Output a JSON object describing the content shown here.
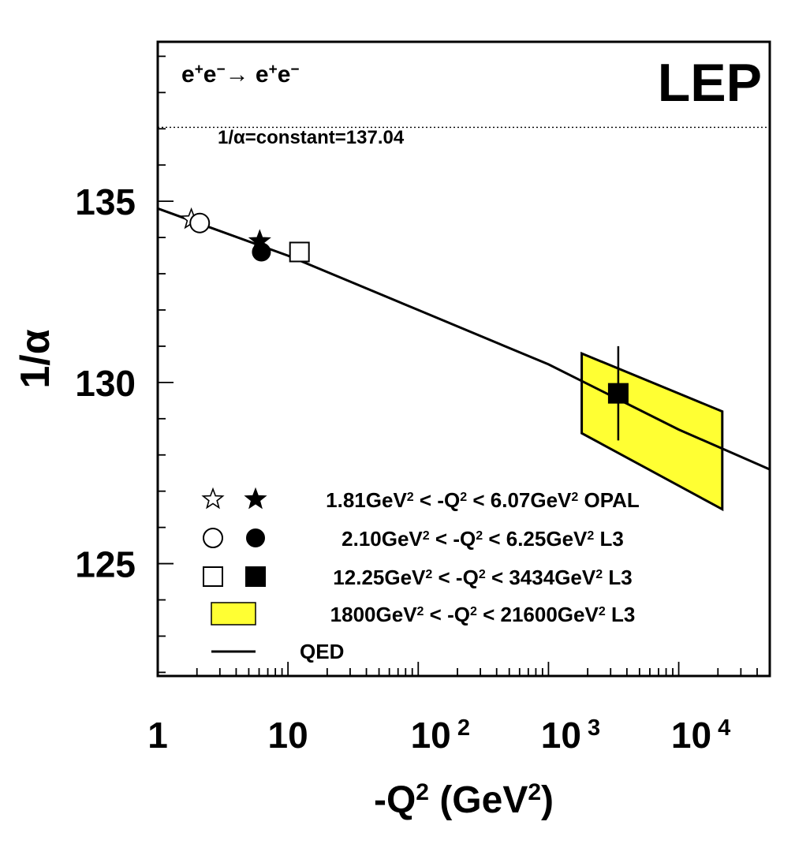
{
  "chart_data": {
    "type": "scatter",
    "title": "",
    "xlabel": "-Q2 (GeV2)",
    "ylabel": "1/α",
    "x_scale": "log",
    "xlim": [
      1,
      50000
    ],
    "ylim": [
      121.9,
      139.4
    ],
    "x_tick_labels": [
      "1",
      "10",
      "10 2",
      "10 3",
      "10 4"
    ],
    "y_tick_labels": [
      "125",
      "130",
      "135"
    ],
    "grid": false,
    "legend_placement": "bottom-left",
    "annotations": {
      "process": "e+e− → e+e−",
      "experiment": "LEP",
      "constant_label": "1/α=constant=137.04",
      "constant_value": 137.04
    },
    "series": [
      {
        "name": "1.81GeV2 < -Q2 < 6.07GeV2 OPAL",
        "marker": "star",
        "points": [
          {
            "x": 1.81,
            "y": 134.5,
            "filled": false
          },
          {
            "x": 6.07,
            "y": 133.9,
            "filled": true
          }
        ]
      },
      {
        "name": "2.10GeV2 < -Q2 < 6.25GeV2 L3",
        "marker": "circle",
        "points": [
          {
            "x": 2.1,
            "y": 134.4,
            "filled": false
          },
          {
            "x": 6.25,
            "y": 133.6,
            "filled": true
          }
        ]
      },
      {
        "name": "12.25GeV2 < -Q2 < 3434GeV2 L3",
        "marker": "square",
        "points": [
          {
            "x": 12.25,
            "y": 133.6,
            "filled": false
          },
          {
            "x": 3434,
            "y": 129.7,
            "filled": true,
            "yerr": [
              128.4,
              131.0
            ]
          }
        ]
      },
      {
        "name": "1800GeV2 < -Q2 < 21600GeV2 L3",
        "marker": "band",
        "color": "#ffff33",
        "band": [
          {
            "x": 1800,
            "y_low": 128.6,
            "y_high": 130.8
          },
          {
            "x": 21600,
            "y_low": 126.5,
            "y_high": 129.2
          }
        ]
      },
      {
        "name": "QED",
        "marker": "line",
        "line": [
          {
            "x": 1,
            "y": 134.8
          },
          {
            "x": 10,
            "y": 133.5
          },
          {
            "x": 100,
            "y": 132.0
          },
          {
            "x": 1000,
            "y": 130.5
          },
          {
            "x": 10000,
            "y": 128.7
          },
          {
            "x": 50000,
            "y": 127.6
          }
        ]
      }
    ],
    "legend": [
      {
        "marker": "star",
        "low": "1.81",
        "high": "6.07",
        "experiment": "OPAL"
      },
      {
        "marker": "circle",
        "low": "2.10",
        "high": "6.25",
        "experiment": "L3"
      },
      {
        "marker": "square",
        "low": "12.25",
        "high": "3434",
        "experiment": "L3"
      },
      {
        "marker": "band",
        "low": "1800",
        "high": "21600",
        "experiment": "L3"
      },
      {
        "marker": "line",
        "label": "QED"
      }
    ]
  }
}
